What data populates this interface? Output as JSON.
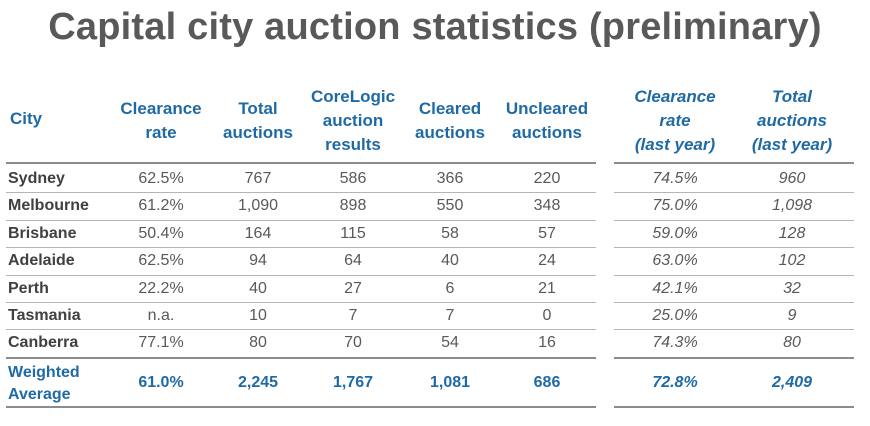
{
  "title": "Capital city auction statistics (preliminary)",
  "headers": {
    "city": "City",
    "clearance_rate": "Clearance\nrate",
    "total_auctions": "Total\nauctions",
    "corelogic": "CoreLogic\nauction\nresults",
    "cleared": "Cleared\nauctions",
    "uncleared": "Uncleared\nauctions",
    "clearance_last": "Clearance\nrate\n(last year)",
    "total_last": "Total\nauctions\n(last year)"
  },
  "rows": [
    {
      "city": "Sydney",
      "clearance_rate": "62.5%",
      "total": "767",
      "corelogic": "586",
      "cleared": "366",
      "uncleared": "220",
      "clearance_last": "74.5%",
      "total_last": "960"
    },
    {
      "city": "Melbourne",
      "clearance_rate": "61.2%",
      "total": "1,090",
      "corelogic": "898",
      "cleared": "550",
      "uncleared": "348",
      "clearance_last": "75.0%",
      "total_last": "1,098"
    },
    {
      "city": "Brisbane",
      "clearance_rate": "50.4%",
      "total": "164",
      "corelogic": "115",
      "cleared": "58",
      "uncleared": "57",
      "clearance_last": "59.0%",
      "total_last": "128"
    },
    {
      "city": "Adelaide",
      "clearance_rate": "62.5%",
      "total": "94",
      "corelogic": "64",
      "cleared": "40",
      "uncleared": "24",
      "clearance_last": "63.0%",
      "total_last": "102"
    },
    {
      "city": "Perth",
      "clearance_rate": "22.2%",
      "total": "40",
      "corelogic": "27",
      "cleared": "6",
      "uncleared": "21",
      "clearance_last": "42.1%",
      "total_last": "32"
    },
    {
      "city": "Tasmania",
      "clearance_rate": "n.a.",
      "total": "10",
      "corelogic": "7",
      "cleared": "7",
      "uncleared": "0",
      "clearance_last": "25.0%",
      "total_last": "9"
    },
    {
      "city": "Canberra",
      "clearance_rate": "77.1%",
      "total": "80",
      "corelogic": "70",
      "cleared": "54",
      "uncleared": "16",
      "clearance_last": "74.3%",
      "total_last": "80"
    }
  ],
  "weighted_average": {
    "label": "Weighted\nAverage",
    "clearance_rate": "61.0%",
    "total": "2,245",
    "corelogic": "1,767",
    "cleared": "1,081",
    "uncleared": "686",
    "clearance_last": "72.8%",
    "total_last": "2,409"
  },
  "colors": {
    "title": "#595959",
    "accent": "#1f6aa5",
    "text": "#595959",
    "rule": "#8c8c8c"
  }
}
